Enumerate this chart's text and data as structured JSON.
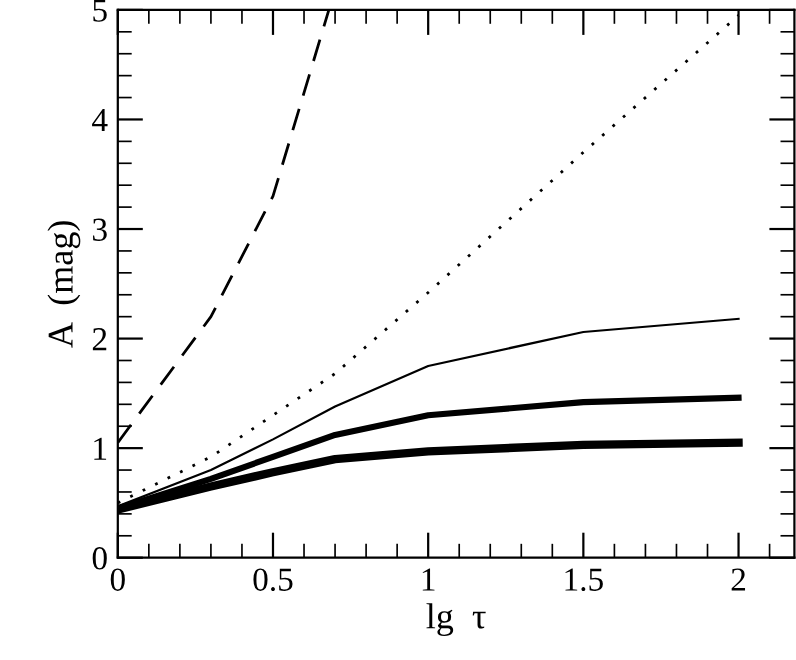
{
  "chart_data": {
    "type": "line",
    "xlabel": "lg  τ",
    "ylabel": "A  (mag)",
    "xlim": [
      0,
      2.18
    ],
    "ylim": [
      0,
      5
    ],
    "xticks": [
      0,
      0.5,
      1,
      1.5,
      2
    ],
    "yticks": [
      0,
      1,
      2,
      3,
      4,
      5
    ],
    "grid": false,
    "legend": false,
    "marker": "none",
    "series": [
      {
        "color": "#000000",
        "line_style": "dashed",
        "x": [
          0,
          0.3,
          0.5,
          0.68
        ],
        "values": [
          1.05,
          2.2,
          3.3,
          5.0
        ]
      },
      {
        "color": "#000000",
        "line_style": "dotted",
        "x": [
          0,
          0.3,
          0.5,
          0.7,
          1,
          1.5,
          2
        ],
        "values": [
          0.5,
          0.92,
          1.3,
          1.68,
          2.42,
          3.7,
          4.95
        ]
      },
      {
        "color": "#000000",
        "line_style": "solid",
        "x": [
          0,
          0.3,
          0.5,
          0.7,
          1,
          1.5,
          2
        ],
        "values": [
          0.47,
          0.8,
          1.08,
          1.38,
          1.75,
          2.06,
          2.18
        ]
      },
      {
        "color": "#000000",
        "line_style": "solid",
        "x": [
          0,
          0.3,
          0.5,
          0.7,
          1,
          1.5,
          2
        ],
        "values": [
          0.45,
          0.72,
          0.92,
          1.12,
          1.3,
          1.42,
          1.46
        ]
      },
      {
        "color": "#000000",
        "line_style": "solid",
        "x": [
          0,
          0.3,
          0.5,
          0.7,
          1,
          1.5,
          2
        ],
        "values": [
          0.44,
          0.65,
          0.78,
          0.9,
          0.97,
          1.03,
          1.05
        ]
      }
    ]
  }
}
